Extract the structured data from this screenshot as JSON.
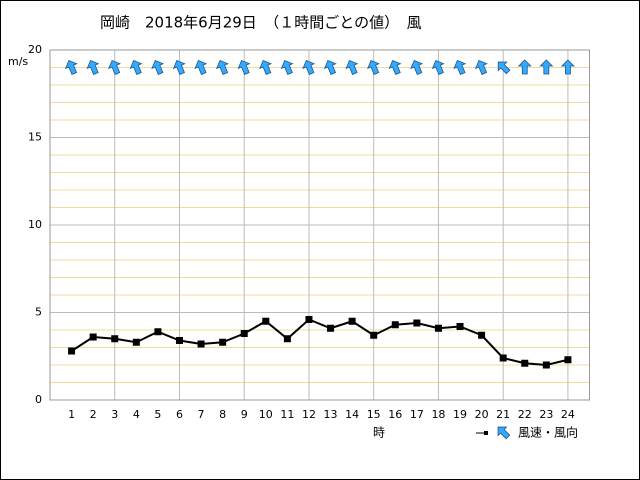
{
  "chart_data": {
    "type": "line",
    "title": "岡崎　2018年6月29日　（１時間ごとの値）　風",
    "y_label": "m/s",
    "x_label": "時",
    "x": [
      1,
      2,
      3,
      4,
      5,
      6,
      7,
      8,
      9,
      10,
      11,
      12,
      13,
      14,
      15,
      16,
      17,
      18,
      19,
      20,
      21,
      22,
      23,
      24
    ],
    "xlim": [
      0,
      25
    ],
    "xticks": [
      1,
      2,
      3,
      4,
      5,
      6,
      7,
      8,
      9,
      10,
      11,
      12,
      13,
      14,
      15,
      16,
      17,
      18,
      19,
      20,
      21,
      22,
      23,
      24
    ],
    "vgrid": [
      3,
      6,
      9,
      12,
      15,
      18,
      21,
      24
    ],
    "ylim": [
      0,
      20
    ],
    "yticks": [
      0,
      5,
      10,
      15,
      20
    ],
    "minor_grid_step": 1,
    "grid": true,
    "series": [
      {
        "name": "風速・風向",
        "color": "#000000",
        "arrow_color": "#33aaff",
        "values": [
          2.8,
          3.6,
          3.5,
          3.3,
          3.9,
          3.4,
          3.2,
          3.3,
          3.8,
          4.5,
          3.5,
          4.6,
          4.1,
          4.5,
          3.7,
          4.3,
          4.4,
          4.1,
          4.2,
          3.7,
          2.4,
          2.1,
          2.0,
          2.3
        ],
        "directions": [
          157.5,
          157.5,
          157.5,
          157.5,
          157.5,
          157.5,
          157.5,
          157.5,
          157.5,
          157.5,
          157.5,
          157.5,
          157.5,
          157.5,
          157.5,
          157.5,
          157.5,
          157.5,
          157.5,
          157.5,
          135,
          180,
          180,
          180
        ]
      }
    ]
  }
}
